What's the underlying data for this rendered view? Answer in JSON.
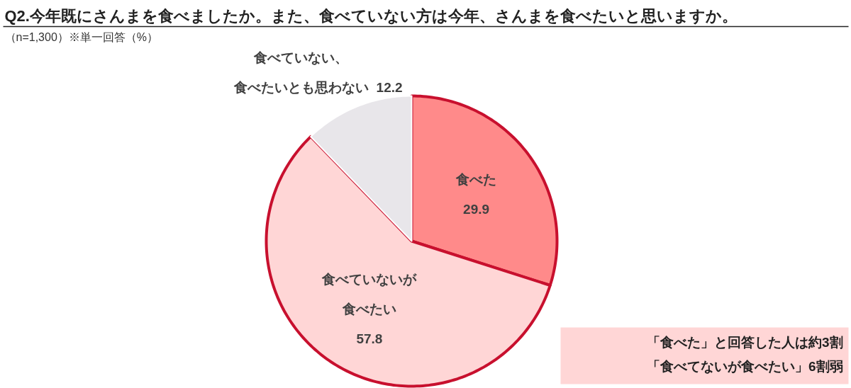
{
  "chart_data": {
    "type": "pie",
    "title": "Q2.今年既にさんまを食べましたか。また、食べていない方は今年、さんまを食べたいと思いますか。",
    "subtitle": "（n=1,300）※単一回答（%）",
    "categories": [
      "食べた",
      "食べていないが食べたい",
      "食べていない、食べたいとも思わない"
    ],
    "values": [
      29.9,
      57.8,
      12.2
    ],
    "colors": [
      "#ff8a8a",
      "#ffd6d6",
      "#e8e6ea"
    ],
    "data_labels": true,
    "annotations": [
      "「食べた」と回答した人は約3割「食べてないが食べたい」6割弱"
    ]
  }
}
